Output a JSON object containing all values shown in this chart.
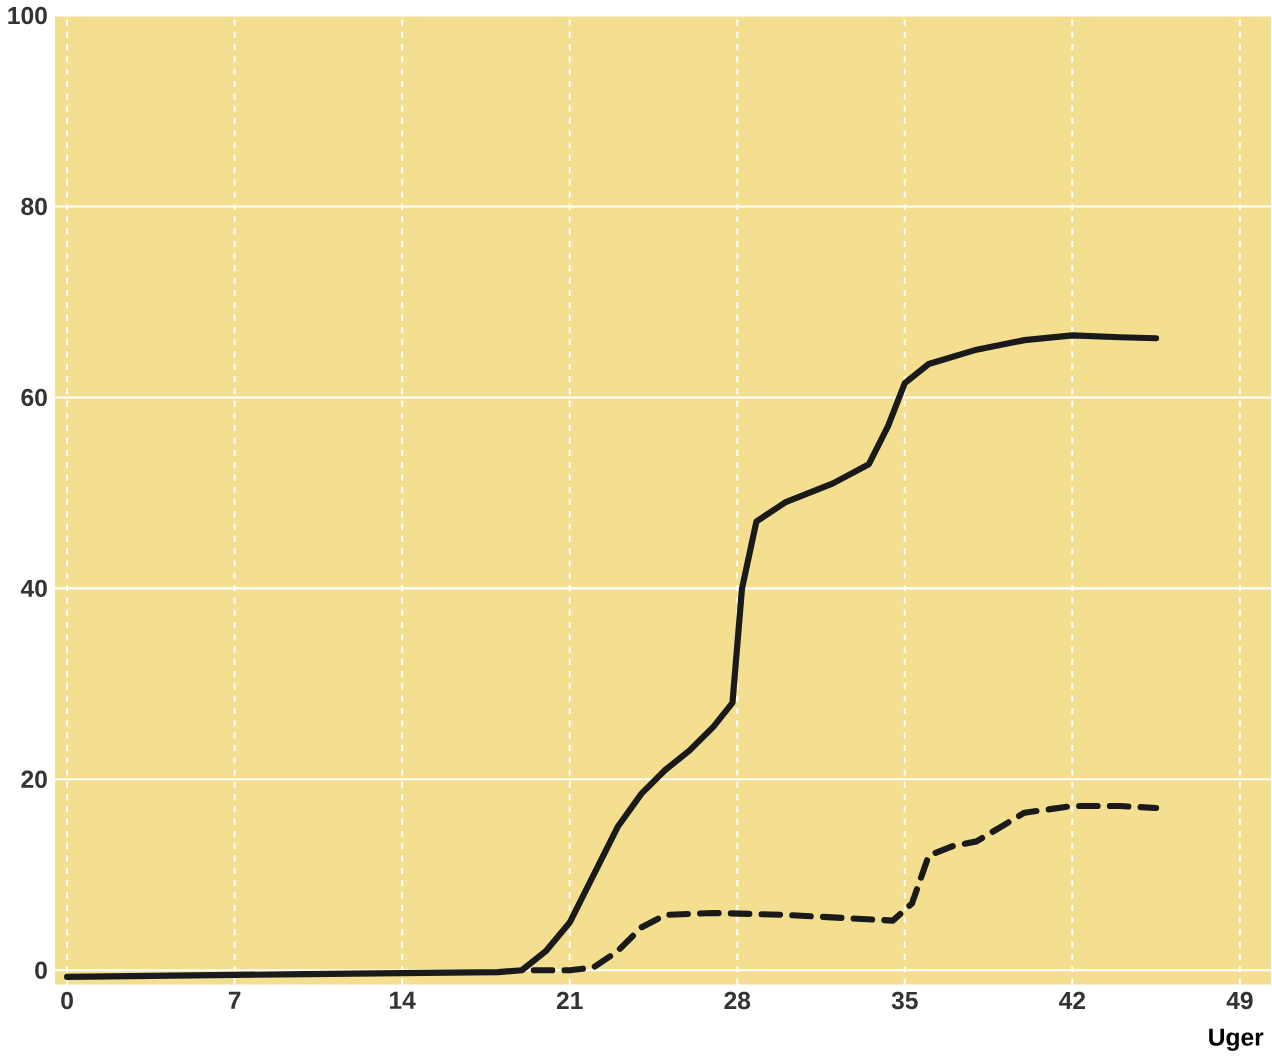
{
  "chart_data": {
    "type": "line",
    "xlabel": "Uger",
    "xlim": [
      -0.5,
      50.3
    ],
    "ylim": [
      -1.5,
      100
    ],
    "xticks": [
      0,
      7,
      14,
      21,
      28,
      35,
      42,
      49
    ],
    "yticks": [
      0,
      20,
      40,
      60,
      80,
      100
    ],
    "grid": true,
    "marker": "none",
    "series": [
      {
        "color": "#1a1a1a",
        "line_style": "solid",
        "x": [
          0,
          10,
          18,
          19,
          20,
          21,
          22,
          23,
          24,
          25,
          26,
          27,
          27.8,
          28.2,
          28.8,
          30,
          32,
          33.5,
          34.3,
          35,
          36,
          38,
          40,
          42,
          44,
          45.5
        ],
        "values": [
          -0.7,
          -0.4,
          -0.2,
          0,
          2,
          5,
          10,
          15,
          18.5,
          21,
          23,
          25.5,
          28,
          40,
          47,
          49,
          51,
          53,
          57,
          61.5,
          63.5,
          65,
          66,
          66.5,
          66.3,
          66.2
        ]
      },
      {
        "color": "#1a1a1a",
        "line_style": "dashed",
        "x": [
          19.5,
          21,
          22,
          23,
          24,
          25,
          27,
          30,
          33,
          34.5,
          35.3,
          36,
          37,
          38,
          39,
          40,
          42,
          44,
          45.5
        ],
        "values": [
          0,
          0,
          0.3,
          2,
          4.5,
          5.8,
          6,
          5.8,
          5.4,
          5.2,
          7,
          12,
          13,
          13.5,
          15,
          16.5,
          17.2,
          17.2,
          17
        ]
      }
    ]
  }
}
